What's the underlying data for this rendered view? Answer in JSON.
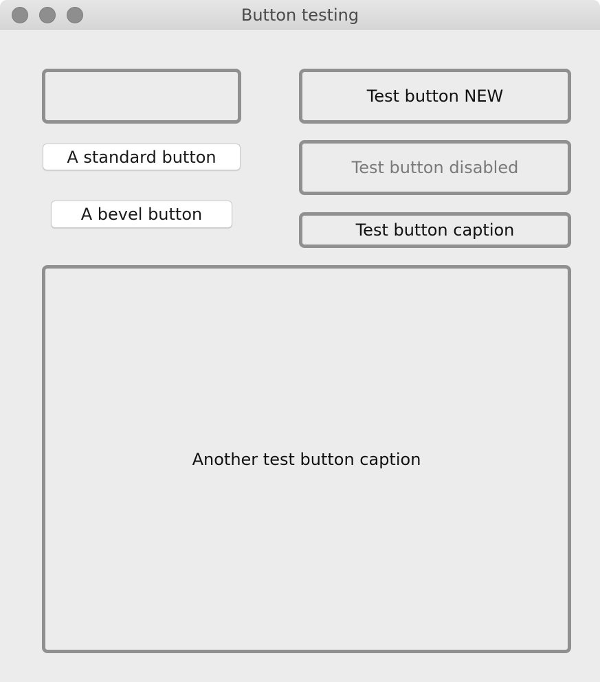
{
  "window": {
    "title": "Button testing"
  },
  "buttons": {
    "empty": "",
    "test_new": "Test button NEW",
    "standard": "A standard button",
    "disabled": "Test button disabled",
    "bevel": "A bevel button",
    "caption": "Test button caption",
    "large": "Another test button caption"
  },
  "colors": {
    "window_bg": "#ececec",
    "button_border": "#909090",
    "disabled_text": "#7a7a7a"
  }
}
